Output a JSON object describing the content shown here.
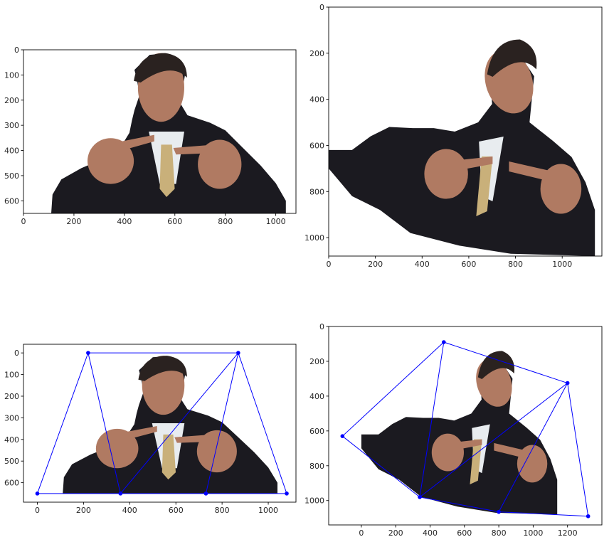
{
  "colors": {
    "mesh": "#0000ff",
    "suit": "#1b1a20",
    "shirt": "#e8ecef",
    "skin": "#b07a62",
    "hair": "#2a2220",
    "tie": "#3a3228",
    "tie_stripe": "#c9b07a"
  },
  "chart_data": [
    {
      "type": "image",
      "panel": "top-left",
      "xlim": [
        0,
        1080
      ],
      "ylim": [
        650,
        0
      ],
      "xticks": [
        0,
        200,
        400,
        600,
        800,
        1000
      ],
      "yticks": [
        0,
        100,
        200,
        300,
        400,
        500,
        600
      ],
      "image_extent": {
        "x": [
          0,
          1080
        ],
        "y": [
          0,
          650
        ]
      },
      "subject_outline": [
        [
          110,
          650
        ],
        [
          115,
          575
        ],
        [
          150,
          515
        ],
        [
          230,
          470
        ],
        [
          300,
          440
        ],
        [
          380,
          395
        ],
        [
          420,
          330
        ],
        [
          430,
          280
        ],
        [
          440,
          240
        ],
        [
          460,
          180
        ],
        [
          450,
          120
        ],
        [
          440,
          80
        ],
        [
          500,
          20
        ],
        [
          560,
          15
        ],
        [
          620,
          40
        ],
        [
          640,
          100
        ],
        [
          630,
          160
        ],
        [
          620,
          210
        ],
        [
          650,
          260
        ],
        [
          740,
          290
        ],
        [
          800,
          320
        ],
        [
          870,
          390
        ],
        [
          940,
          460
        ],
        [
          1000,
          530
        ],
        [
          1040,
          600
        ],
        [
          1040,
          650
        ]
      ]
    },
    {
      "type": "image",
      "panel": "top-right",
      "xlim": [
        0,
        1170
      ],
      "ylim": [
        1080,
        0
      ],
      "xticks": [
        0,
        200,
        400,
        600,
        800,
        1000
      ],
      "yticks": [
        0,
        200,
        400,
        600,
        800,
        1000
      ],
      "image_extent": {
        "x": [
          0,
          1170
        ],
        "y": [
          0,
          1080
        ]
      },
      "subject_outline": [
        [
          0,
          700
        ],
        [
          0,
          620
        ],
        [
          100,
          620
        ],
        [
          180,
          560
        ],
        [
          260,
          520
        ],
        [
          360,
          525
        ],
        [
          450,
          525
        ],
        [
          540,
          540
        ],
        [
          640,
          500
        ],
        [
          700,
          420
        ],
        [
          690,
          280
        ],
        [
          760,
          235
        ],
        [
          840,
          240
        ],
        [
          880,
          300
        ],
        [
          870,
          400
        ],
        [
          860,
          500
        ],
        [
          960,
          580
        ],
        [
          1040,
          650
        ],
        [
          1100,
          760
        ],
        [
          1140,
          880
        ],
        [
          1140,
          1080
        ],
        [
          780,
          1070
        ],
        [
          560,
          1035
        ],
        [
          350,
          980
        ],
        [
          220,
          880
        ],
        [
          100,
          820
        ],
        [
          0,
          700
        ]
      ]
    },
    {
      "type": "image+mesh",
      "panel": "bottom-left",
      "xlim": [
        -60,
        1120
      ],
      "ylim": [
        690,
        -40
      ],
      "xticks": [
        0,
        200,
        400,
        600,
        800,
        1000
      ],
      "yticks": [
        0,
        100,
        200,
        300,
        400,
        500,
        600
      ],
      "image_extent": {
        "x": [
          0,
          1080
        ],
        "y": [
          0,
          650
        ]
      },
      "subject_outline": [
        [
          110,
          650
        ],
        [
          115,
          575
        ],
        [
          150,
          515
        ],
        [
          230,
          470
        ],
        [
          300,
          440
        ],
        [
          380,
          395
        ],
        [
          420,
          330
        ],
        [
          430,
          280
        ],
        [
          440,
          240
        ],
        [
          460,
          180
        ],
        [
          450,
          120
        ],
        [
          440,
          80
        ],
        [
          500,
          20
        ],
        [
          560,
          15
        ],
        [
          620,
          40
        ],
        [
          640,
          100
        ],
        [
          630,
          160
        ],
        [
          620,
          210
        ],
        [
          650,
          260
        ],
        [
          740,
          290
        ],
        [
          800,
          320
        ],
        [
          870,
          390
        ],
        [
          940,
          460
        ],
        [
          1000,
          530
        ],
        [
          1040,
          600
        ],
        [
          1040,
          650
        ]
      ],
      "points": [
        [
          220,
          0
        ],
        [
          870,
          0
        ],
        [
          0,
          650
        ],
        [
          360,
          650
        ],
        [
          730,
          650
        ],
        [
          1080,
          650
        ]
      ],
      "edges": [
        [
          0,
          1
        ],
        [
          0,
          2
        ],
        [
          0,
          3
        ],
        [
          2,
          3
        ],
        [
          3,
          4
        ],
        [
          4,
          5
        ],
        [
          1,
          5
        ],
        [
          1,
          4
        ],
        [
          1,
          3
        ]
      ]
    },
    {
      "type": "image+mesh",
      "panel": "bottom-right",
      "xlim": [
        -190,
        1400
      ],
      "ylim": [
        1140,
        0
      ],
      "xticks": [
        0,
        200,
        400,
        600,
        800,
        1000,
        1200
      ],
      "yticks": [
        0,
        200,
        400,
        600,
        800,
        1000
      ],
      "image_extent": {
        "x": [
          0,
          1170
        ],
        "y": [
          0,
          1080
        ]
      },
      "subject_outline": [
        [
          0,
          700
        ],
        [
          0,
          620
        ],
        [
          100,
          620
        ],
        [
          180,
          560
        ],
        [
          260,
          520
        ],
        [
          360,
          525
        ],
        [
          450,
          525
        ],
        [
          540,
          540
        ],
        [
          640,
          500
        ],
        [
          700,
          420
        ],
        [
          690,
          280
        ],
        [
          760,
          235
        ],
        [
          840,
          240
        ],
        [
          880,
          300
        ],
        [
          870,
          400
        ],
        [
          860,
          500
        ],
        [
          960,
          580
        ],
        [
          1040,
          650
        ],
        [
          1100,
          760
        ],
        [
          1140,
          880
        ],
        [
          1140,
          1080
        ],
        [
          780,
          1070
        ],
        [
          560,
          1035
        ],
        [
          350,
          980
        ],
        [
          220,
          880
        ],
        [
          100,
          820
        ],
        [
          0,
          700
        ]
      ],
      "points": [
        [
          480,
          90
        ],
        [
          1200,
          325
        ],
        [
          -110,
          630
        ],
        [
          340,
          980
        ],
        [
          800,
          1065
        ],
        [
          1320,
          1090
        ]
      ],
      "edges": [
        [
          0,
          1
        ],
        [
          0,
          2
        ],
        [
          0,
          3
        ],
        [
          2,
          3
        ],
        [
          3,
          4
        ],
        [
          4,
          5
        ],
        [
          1,
          5
        ],
        [
          1,
          4
        ],
        [
          1,
          3
        ]
      ]
    }
  ]
}
